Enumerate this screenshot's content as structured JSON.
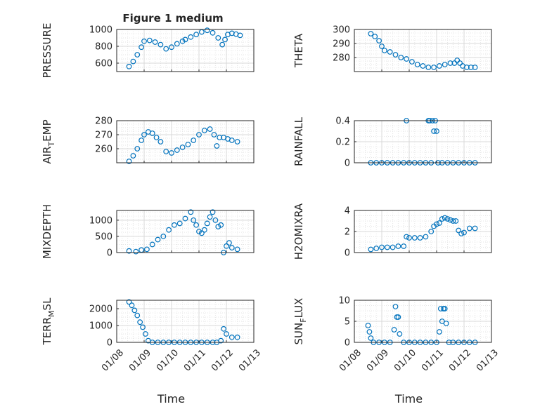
{
  "figure": {
    "title": "Figure 1 medium"
  },
  "colors": {
    "marker": "#0072BD",
    "axis": "#262626",
    "grid": "#d9d9d9",
    "minor_grid": "#e6e6e6"
  },
  "chart_data": [
    {
      "type": "scatter",
      "ylabel": "PRESSURE",
      "ylim": [
        500,
        1000
      ],
      "yticks": [
        600,
        800,
        1000
      ],
      "xlim": [
        "01/08",
        "01/13"
      ],
      "xticks": [
        "01/08",
        "01/09",
        "01/10",
        "01/11",
        "01/12",
        "01/13"
      ],
      "grid": true,
      "x": [
        0.45,
        0.6,
        0.75,
        0.9,
        1.0,
        1.2,
        1.4,
        1.6,
        1.8,
        2.0,
        2.2,
        2.4,
        2.5,
        2.7,
        2.9,
        3.1,
        3.3,
        3.5,
        3.7,
        3.85,
        3.95,
        4.05,
        4.2,
        4.35,
        4.5
      ],
      "y": [
        560,
        620,
        700,
        790,
        860,
        870,
        850,
        820,
        770,
        790,
        830,
        860,
        880,
        910,
        940,
        970,
        990,
        960,
        900,
        820,
        880,
        940,
        955,
        945,
        930
      ]
    },
    {
      "type": "scatter",
      "ylabel": "THETA",
      "ylim": [
        270,
        300
      ],
      "yticks": [
        280,
        290,
        300
      ],
      "xlim": [
        "01/08",
        "01/13"
      ],
      "xticks": [
        "01/08",
        "01/09",
        "01/10",
        "01/11",
        "01/12",
        "01/13"
      ],
      "grid": true,
      "x": [
        0.6,
        0.75,
        0.9,
        1.0,
        1.1,
        1.3,
        1.5,
        1.7,
        1.9,
        2.1,
        2.3,
        2.5,
        2.7,
        2.9,
        3.1,
        3.3,
        3.5,
        3.65,
        3.75,
        3.85,
        3.95,
        4.1,
        4.25,
        4.4
      ],
      "y": [
        297,
        295,
        292,
        288,
        285,
        284,
        282,
        280,
        279,
        277,
        275,
        274,
        273,
        273,
        274,
        275,
        276,
        276,
        278,
        276,
        274,
        273,
        273,
        273
      ]
    },
    {
      "type": "scatter",
      "ylabel": "AIR_TEMP",
      "ylim": [
        250,
        280
      ],
      "yticks": [
        260,
        270,
        280
      ],
      "xlim": [
        "01/08",
        "01/13"
      ],
      "xticks": [
        "01/08",
        "01/09",
        "01/10",
        "01/11",
        "01/12",
        "01/13"
      ],
      "grid": true,
      "x": [
        0.45,
        0.6,
        0.75,
        0.9,
        1.0,
        1.15,
        1.3,
        1.45,
        1.6,
        1.8,
        2.0,
        2.2,
        2.4,
        2.6,
        2.8,
        3.0,
        3.2,
        3.4,
        3.55,
        3.65,
        3.75,
        3.9,
        4.05,
        4.2,
        4.4
      ],
      "y": [
        251,
        255,
        260,
        266,
        270,
        272,
        271,
        268,
        265,
        258,
        257,
        259,
        261,
        263,
        266,
        270,
        273,
        274,
        270,
        262,
        268,
        268,
        267,
        266,
        265
      ]
    },
    {
      "type": "scatter",
      "ylabel": "RAINFALL",
      "ylim": [
        0,
        0.4
      ],
      "yticks": [
        0,
        0.2,
        0.4
      ],
      "xlim": [
        "01/08",
        "01/13"
      ],
      "xticks": [
        "01/08",
        "01/09",
        "01/10",
        "01/11",
        "01/12",
        "01/13"
      ],
      "grid": true,
      "x": [
        0.6,
        0.8,
        1.0,
        1.2,
        1.4,
        1.6,
        1.8,
        1.9,
        2.0,
        2.2,
        2.4,
        2.6,
        2.7,
        2.75,
        2.8,
        2.85,
        2.9,
        2.95,
        3.0,
        3.05,
        3.2,
        3.4,
        3.6,
        3.8,
        4.0,
        4.2,
        4.4
      ],
      "y": [
        0,
        0,
        0,
        0,
        0,
        0,
        0,
        0.4,
        0,
        0,
        0,
        0,
        0.4,
        0.4,
        0,
        0.4,
        0.3,
        0.4,
        0.3,
        0,
        0,
        0,
        0,
        0,
        0,
        0,
        0
      ]
    },
    {
      "type": "scatter",
      "ylabel": "MIXDEPTH",
      "ylim": [
        0,
        1300
      ],
      "yticks": [
        0,
        500,
        1000
      ],
      "xlim": [
        "01/08",
        "01/13"
      ],
      "xticks": [
        "01/08",
        "01/09",
        "01/10",
        "01/11",
        "01/12",
        "01/13"
      ],
      "grid": true,
      "x": [
        0.45,
        0.7,
        0.9,
        1.1,
        1.3,
        1.5,
        1.7,
        1.9,
        2.1,
        2.3,
        2.5,
        2.7,
        2.8,
        2.9,
        3.0,
        3.1,
        3.2,
        3.3,
        3.4,
        3.5,
        3.6,
        3.7,
        3.8,
        3.9,
        4.0,
        4.1,
        4.2,
        4.4
      ],
      "y": [
        50,
        30,
        80,
        100,
        250,
        400,
        500,
        700,
        850,
        900,
        1050,
        1250,
        1000,
        850,
        650,
        600,
        700,
        900,
        1100,
        1250,
        1000,
        800,
        850,
        0,
        200,
        300,
        150,
        100
      ]
    },
    {
      "type": "scatter",
      "ylabel": "H2OMIXRA",
      "ylim": [
        0,
        4
      ],
      "yticks": [
        0,
        2,
        4
      ],
      "xlim": [
        "01/08",
        "01/13"
      ],
      "xticks": [
        "01/08",
        "01/09",
        "01/10",
        "01/11",
        "01/12",
        "01/13"
      ],
      "grid": true,
      "x": [
        0.6,
        0.8,
        1.0,
        1.2,
        1.4,
        1.6,
        1.8,
        1.9,
        2.0,
        2.2,
        2.4,
        2.6,
        2.8,
        2.9,
        3.0,
        3.1,
        3.2,
        3.3,
        3.4,
        3.5,
        3.6,
        3.7,
        3.8,
        3.9,
        4.0,
        4.2,
        4.4
      ],
      "y": [
        0.3,
        0.4,
        0.5,
        0.5,
        0.5,
        0.6,
        0.6,
        1.5,
        1.4,
        1.4,
        1.4,
        1.5,
        2.0,
        2.5,
        2.7,
        2.8,
        3.2,
        3.3,
        3.2,
        3.1,
        3.0,
        3.0,
        2.1,
        1.8,
        1.9,
        2.3,
        2.3
      ]
    },
    {
      "type": "scatter",
      "ylabel": "TERR_MSL",
      "ylim": [
        0,
        2500
      ],
      "yticks": [
        0,
        1000,
        2000
      ],
      "xlim": [
        "01/08",
        "01/13"
      ],
      "xticks": [
        "01/08",
        "01/09",
        "01/10",
        "01/11",
        "01/12",
        "01/13"
      ],
      "grid": true,
      "x": [
        0.45,
        0.55,
        0.65,
        0.75,
        0.85,
        0.95,
        1.05,
        1.15,
        1.3,
        1.5,
        1.7,
        1.9,
        2.1,
        2.3,
        2.5,
        2.7,
        2.9,
        3.1,
        3.3,
        3.5,
        3.65,
        3.8,
        3.9,
        4.0,
        4.2,
        4.4
      ],
      "y": [
        2400,
        2200,
        1900,
        1600,
        1200,
        900,
        500,
        100,
        0,
        0,
        0,
        0,
        0,
        0,
        0,
        0,
        0,
        0,
        0,
        0,
        0,
        100,
        800,
        500,
        300,
        300
      ]
    },
    {
      "type": "scatter",
      "ylabel": "SUN_FLUX",
      "ylim": [
        0,
        10
      ],
      "yticks": [
        0,
        5,
        10
      ],
      "xlim": [
        "01/08",
        "01/13"
      ],
      "xticks": [
        "01/08",
        "01/09",
        "01/10",
        "01/11",
        "01/12",
        "01/13"
      ],
      "grid": true,
      "x": [
        0.5,
        0.55,
        0.6,
        0.7,
        0.9,
        1.1,
        1.3,
        1.45,
        1.5,
        1.55,
        1.6,
        1.65,
        1.8,
        2.0,
        2.2,
        2.4,
        2.6,
        2.8,
        3.0,
        3.1,
        3.15,
        3.2,
        3.25,
        3.3,
        3.35,
        3.45,
        3.6,
        3.8,
        4.0,
        4.2,
        4.4
      ],
      "y": [
        4,
        2.5,
        1,
        0,
        0,
        0,
        0,
        3,
        8.5,
        6,
        6,
        2,
        0,
        0,
        0,
        0,
        0,
        0,
        0,
        2.5,
        8,
        5,
        8,
        8,
        4.5,
        0,
        0,
        0,
        0,
        0,
        0
      ]
    }
  ],
  "xlabel": "Time"
}
